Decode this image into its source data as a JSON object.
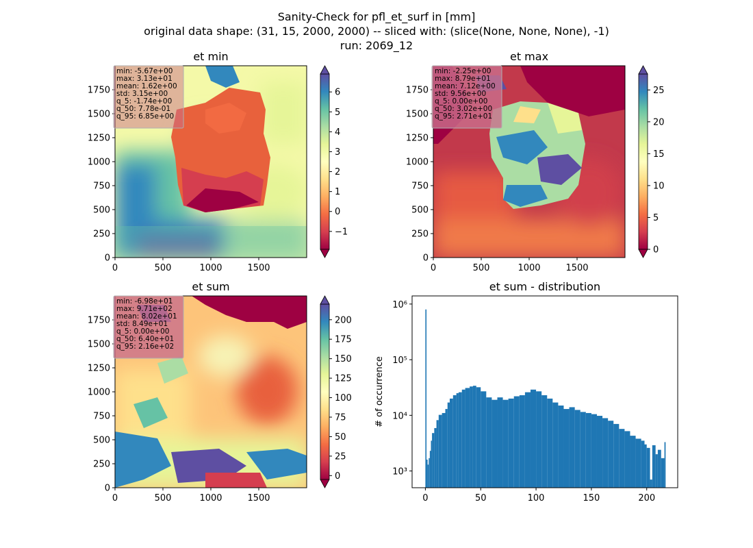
{
  "figure": {
    "title_lines": [
      "Sanity-Check for pfl_et_surf in [mm]",
      "original data shape: (31, 15, 2000, 2000) -- sliced with: (slice(None, None, None), -1)",
      "run: 2069_12"
    ]
  },
  "colormap": {
    "name": "Spectral",
    "stops": [
      "#9e0142",
      "#d53e4f",
      "#f46d43",
      "#fdae61",
      "#fee08b",
      "#ffffbf",
      "#e6f598",
      "#abdda4",
      "#66c2a5",
      "#3288bd",
      "#5e4fa2"
    ]
  },
  "statsbox_color": "#c96f8c",
  "hist_color": "#1f77b4",
  "chart_data": [
    {
      "type": "heatmap",
      "title": "et min",
      "xlim": [
        0,
        2000
      ],
      "ylim": [
        0,
        2000
      ],
      "xticks": [
        "0",
        "500",
        "1000",
        "1500"
      ],
      "yticks": [
        "0",
        "250",
        "500",
        "750",
        "1000",
        "1250",
        "1500",
        "1750"
      ],
      "colorbar": {
        "vmin": -1.9,
        "vmax": 6.9,
        "ticks": [
          "−1",
          "0",
          "1",
          "2",
          "3",
          "4",
          "5",
          "6"
        ],
        "tick_values": [
          -1,
          0,
          1,
          2,
          3,
          4,
          5,
          6
        ]
      },
      "stats": [
        "min: -5.67e+00",
        "max: 3.13e+01",
        "mean: 1.62e+00",
        "std: 3.15e+00",
        "q_5: -1.74e+00",
        "q_50: 7.78e-01",
        "q_95: 6.85e+00"
      ]
    },
    {
      "type": "heatmap",
      "title": "et max",
      "xlim": [
        0,
        2000
      ],
      "ylim": [
        0,
        2000
      ],
      "xticks": [
        "0",
        "500",
        "1000",
        "1500"
      ],
      "yticks": [
        "0",
        "250",
        "500",
        "750",
        "1000",
        "1250",
        "1500",
        "1750"
      ],
      "colorbar": {
        "vmin": 0,
        "vmax": 27.5,
        "ticks": [
          "0",
          "5",
          "10",
          "15",
          "20",
          "25"
        ],
        "tick_values": [
          0,
          5,
          10,
          15,
          20,
          25
        ]
      },
      "stats": [
        "min: -2.25e+00",
        "max: 8.79e+01",
        "mean: 7.12e+00",
        "std: 9.56e+00",
        "q_5: 0.00e+00",
        "q_50: 3.02e+00",
        "q_95: 2.71e+01"
      ]
    },
    {
      "type": "heatmap",
      "title": "et sum",
      "xlim": [
        0,
        2000
      ],
      "ylim": [
        0,
        2000
      ],
      "xticks": [
        "0",
        "500",
        "1000",
        "1500"
      ],
      "yticks": [
        "0",
        "250",
        "500",
        "750",
        "1000",
        "1250",
        "1500",
        "1750"
      ],
      "colorbar": {
        "vmin": -5,
        "vmax": 220,
        "ticks": [
          "0",
          "25",
          "50",
          "75",
          "100",
          "125",
          "150",
          "175",
          "200"
        ],
        "tick_values": [
          0,
          25,
          50,
          75,
          100,
          125,
          150,
          175,
          200
        ]
      },
      "stats": [
        "min: -6.98e+01",
        "max: 9.71e+02",
        "mean: 8.02e+01",
        "std: 8.49e+01",
        "q_5: 0.00e+00",
        "q_50: 6.40e+01",
        "q_95: 2.16e+02"
      ]
    },
    {
      "type": "bar",
      "title": "et sum - distribution",
      "xlabel": "",
      "ylabel": "# of occurrence",
      "yscale": "log",
      "xlim": [
        -12,
        228
      ],
      "ylim": [
        500,
        1400000
      ],
      "xticks": [
        "0",
        "50",
        "100",
        "150",
        "200"
      ],
      "xtick_values": [
        0,
        50,
        100,
        150,
        200
      ],
      "yticks": [
        "10³",
        "10⁴",
        "10⁵",
        "10⁶"
      ],
      "ytick_values": [
        1000,
        10000,
        100000,
        1000000
      ],
      "bin_width": 1.08,
      "x": [
        0,
        1,
        2,
        3,
        4,
        5,
        6,
        8,
        10,
        12,
        15,
        18,
        20,
        22,
        25,
        28,
        30,
        33,
        36,
        40,
        43,
        46,
        50,
        55,
        60,
        65,
        70,
        75,
        80,
        85,
        90,
        95,
        100,
        105,
        110,
        115,
        120,
        125,
        130,
        135,
        140,
        145,
        150,
        155,
        160,
        165,
        170,
        175,
        180,
        185,
        190,
        195,
        198,
        200,
        203,
        205,
        208,
        210,
        213,
        216
      ],
      "values": [
        800000,
        1600,
        1300,
        1700,
        2300,
        3500,
        4800,
        5900,
        8200,
        10200,
        11000,
        13000,
        17000,
        20000,
        23000,
        25000,
        26000,
        29000,
        31000,
        33000,
        34000,
        32000,
        27000,
        21000,
        19000,
        21000,
        19000,
        20000,
        22000,
        23000,
        26000,
        29000,
        27000,
        23000,
        20000,
        17000,
        15000,
        13000,
        14000,
        12500,
        11500,
        11000,
        10500,
        9800,
        8900,
        8000,
        7000,
        5700,
        5200,
        4300,
        3800,
        3500,
        3000,
        2600,
        700,
        2900,
        2000,
        2400,
        1700,
        3300
      ]
    }
  ]
}
